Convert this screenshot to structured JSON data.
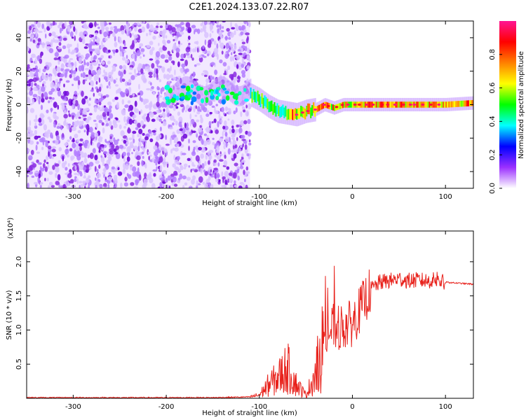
{
  "title": "C2E1.2024.133.07.22.R07",
  "colors": {
    "snr_line": "#e8221c",
    "spectrum_base": "#8a2be2",
    "axis": "#000000"
  },
  "chart_data": [
    {
      "type": "heatmap",
      "xlabel": "Height of straight line (km)",
      "ylabel": "Frequency (Hz)",
      "xlim": [
        -350,
        130
      ],
      "ylim": [
        -50,
        50
      ],
      "xticks": [
        -300,
        -200,
        -100,
        0,
        100
      ],
      "yticks": [
        -40,
        -20,
        0,
        20,
        40
      ],
      "colorbar": {
        "label": "Normalized spectral amplitude",
        "range": [
          0,
          1
        ],
        "ticks": [
          "0.0",
          "0.2",
          "0.4",
          "0.6",
          "0.8"
        ],
        "colors": [
          "#ffffff",
          "#9b30ff",
          "#0000ff",
          "#00ffff",
          "#00ff00",
          "#ffff00",
          "#ff8000",
          "#ff0000",
          "#ff1493"
        ]
      },
      "noise_region_x": [
        -350,
        -110
      ],
      "signal_trace": {
        "x": [
          -110,
          -100,
          -90,
          -80,
          -70,
          -60,
          -50,
          -40,
          -30,
          -20,
          -10,
          0,
          20,
          40,
          60,
          80,
          100,
          130
        ],
        "freq": [
          6,
          3,
          -1,
          -4,
          -5,
          -6,
          -4,
          -3,
          0,
          -2,
          0,
          0,
          0,
          0,
          0,
          0,
          0,
          1
        ]
      }
    },
    {
      "type": "line",
      "xlabel": "Height of straight line (km)",
      "ylabel": "SNR (10 * v/v)",
      "multiplier": "(x10⁴)",
      "xlim": [
        -350,
        130
      ],
      "ylim": [
        0,
        2.45
      ],
      "xticks": [
        -300,
        -200,
        -100,
        0,
        100
      ],
      "yticks": [
        "0.5",
        "1.0",
        "1.5",
        "2.0"
      ],
      "series": [
        {
          "x": [
            -350,
            -300,
            -250,
            -200,
            -150,
            -110,
            -100,
            -90,
            -80,
            -70,
            -60,
            -50,
            -40,
            -30,
            -20,
            -10,
            0,
            10,
            20,
            30,
            40,
            50,
            60,
            70,
            80,
            90,
            95,
            100,
            110,
            120,
            130
          ],
          "y": [
            0.01,
            0.01,
            0.01,
            0.01,
            0.01,
            0.02,
            0.05,
            0.2,
            0.3,
            0.45,
            0.2,
            0.05,
            0.35,
            0.9,
            1.05,
            1.05,
            1.1,
            1.35,
            1.6,
            1.7,
            1.72,
            1.75,
            1.72,
            1.73,
            1.72,
            1.73,
            1.7,
            1.7,
            1.69,
            1.68,
            1.67
          ]
        }
      ]
    }
  ]
}
